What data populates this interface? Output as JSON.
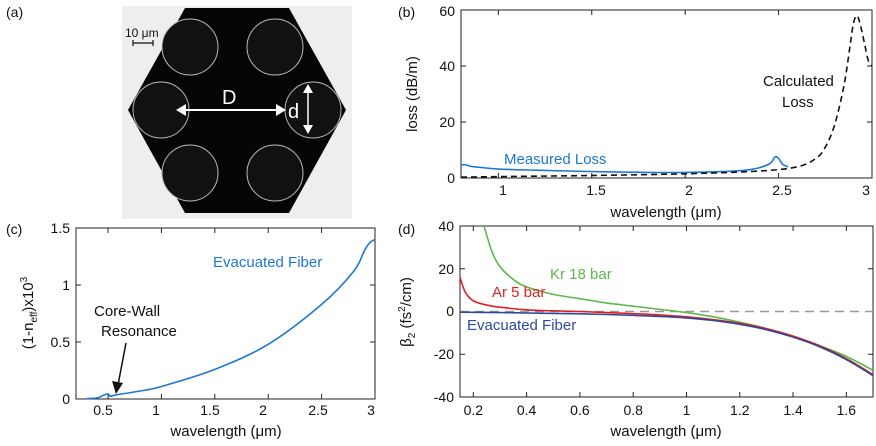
{
  "panels": {
    "a": {
      "label": "(a)",
      "scale_bar_label": "10 μm",
      "diameter_label": "D",
      "capillary_label": "d"
    },
    "b": {
      "label": "(b)",
      "xlabel": "wavelength (μm)",
      "ylabel": "loss (dB/m)",
      "xticks": [
        "1",
        "1.5",
        "2",
        "2.5",
        "3"
      ],
      "yticks": [
        "0",
        "20",
        "40",
        "60"
      ],
      "annotations": {
        "measured": "Measured Loss",
        "calculated_line1": "Calculated",
        "calculated_line2": "Loss"
      }
    },
    "c": {
      "label": "(c)",
      "ylabel_main": "(1-n",
      "ylabel_sub": "eff",
      "ylabel_tail": ")x10",
      "ylabel_sup": "3",
      "xlabel": "wavelength (μm)",
      "xticks": [
        "0.5",
        "1",
        "1.5",
        "2",
        "2.5",
        "3"
      ],
      "yticks": [
        "0",
        "0.5",
        "1",
        "1.5"
      ],
      "annotations": {
        "series": "Evacuated Fiber",
        "resonance_line1": "Core-Wall",
        "resonance_line2": "Resonance"
      }
    },
    "d": {
      "label": "(d)",
      "ylabel_beta": "β",
      "ylabel_sub": "2",
      "ylabel_open": " (fs",
      "ylabel_sup": "2",
      "ylabel_close": "/cm)",
      "xlabel": "wavelength (μm)",
      "xticks": [
        "0.2",
        "0.4",
        "0.6",
        "0.8",
        "1",
        "1.2",
        "1.4",
        "1.6"
      ],
      "yticks": [
        "-40",
        "-20",
        "0",
        "20",
        "40"
      ],
      "annotations": {
        "kr": "Kr 18 bar",
        "ar": "Ar 5 bar",
        "evac": "Evacuated Fiber"
      }
    }
  },
  "colors": {
    "measured": "#1f77d4",
    "evacuated": "#1f77d4",
    "kr": "#5cb84a",
    "ar": "#e02020",
    "evac_d": "#2c4a9e",
    "zero_line": "#999999",
    "axis": "#222222"
  },
  "chart_data": [
    {
      "panel": "b",
      "type": "line",
      "xlim": [
        0.8,
        3.0
      ],
      "ylim": [
        0,
        60
      ],
      "series": [
        {
          "name": "Measured Loss",
          "style": "solid",
          "x": [
            0.8,
            0.82,
            0.85,
            0.9,
            1.0,
            1.2,
            1.5,
            1.8,
            2.0,
            2.2,
            2.35,
            2.45,
            2.48,
            2.5,
            2.52,
            2.55
          ],
          "y": [
            4.5,
            4.8,
            4.2,
            3.8,
            3.2,
            2.8,
            2.3,
            2.0,
            2.0,
            2.3,
            3.0,
            5.0,
            7.5,
            7.0,
            5.0,
            4.0
          ]
        },
        {
          "name": "Calculated Loss",
          "style": "dashed",
          "x": [
            0.8,
            1.0,
            1.5,
            2.0,
            2.4,
            2.6,
            2.7,
            2.75,
            2.8,
            2.85,
            2.88,
            2.9,
            2.92,
            2.94,
            2.96,
            2.98,
            3.0
          ],
          "y": [
            0.3,
            0.5,
            0.9,
            1.5,
            2.5,
            4.0,
            7.0,
            11.0,
            19.0,
            33.0,
            46.0,
            55.0,
            58.0,
            54.0,
            48.0,
            42.0,
            40.0
          ]
        }
      ]
    },
    {
      "panel": "c",
      "type": "line",
      "xlim": [
        0.2,
        3.0
      ],
      "ylim": [
        0,
        1.5
      ],
      "series": [
        {
          "name": "Evacuated Fiber",
          "x": [
            0.3,
            0.4,
            0.45,
            0.5,
            0.52,
            0.55,
            0.6,
            0.8,
            1.0,
            1.5,
            2.0,
            2.5,
            2.8,
            2.9,
            2.95,
            3.0
          ],
          "y": [
            0.003,
            0.01,
            0.03,
            0.045,
            0.025,
            0.03,
            0.04,
            0.07,
            0.11,
            0.26,
            0.48,
            0.83,
            1.12,
            1.3,
            1.37,
            1.4
          ]
        }
      ]
    },
    {
      "panel": "d",
      "type": "line",
      "xlim": [
        0.15,
        1.7
      ],
      "ylim": [
        -40,
        40
      ],
      "series": [
        {
          "name": "Kr 18 bar",
          "x": [
            0.24,
            0.27,
            0.3,
            0.35,
            0.4,
            0.5,
            0.6,
            0.7,
            0.8,
            0.9,
            1.0,
            1.1,
            1.2,
            1.3,
            1.4,
            1.5,
            1.6,
            1.7
          ],
          "y": [
            40,
            28,
            21,
            15,
            11.5,
            8,
            6,
            4,
            2.5,
            1,
            -0.5,
            -2.5,
            -5,
            -8,
            -11.5,
            -16,
            -21,
            -27.5
          ]
        },
        {
          "name": "Ar 5 bar",
          "x": [
            0.15,
            0.17,
            0.2,
            0.25,
            0.3,
            0.4,
            0.5,
            0.6,
            0.7,
            0.8,
            0.9,
            1.0,
            1.1,
            1.2,
            1.3,
            1.4,
            1.5,
            1.6,
            1.7
          ],
          "y": [
            16,
            9,
            5,
            3,
            2,
            0.8,
            0.3,
            0,
            -0.5,
            -1,
            -1.6,
            -2.5,
            -3.8,
            -5.5,
            -8,
            -11.5,
            -16,
            -22,
            -29.5
          ]
        },
        {
          "name": "Evacuated Fiber",
          "x": [
            0.15,
            0.2,
            0.3,
            0.4,
            0.5,
            0.6,
            0.7,
            0.8,
            0.9,
            1.0,
            1.1,
            1.2,
            1.3,
            1.4,
            1.5,
            1.6,
            1.7
          ],
          "y": [
            -0.3,
            -0.4,
            -0.5,
            -0.7,
            -0.9,
            -1.1,
            -1.4,
            -1.8,
            -2.3,
            -3.0,
            -4.2,
            -6.0,
            -8.5,
            -12,
            -16.5,
            -22.5,
            -30
          ]
        },
        {
          "name": "zero",
          "style": "dashed",
          "x": [
            0.15,
            1.7
          ],
          "y": [
            0,
            0
          ]
        }
      ]
    }
  ]
}
